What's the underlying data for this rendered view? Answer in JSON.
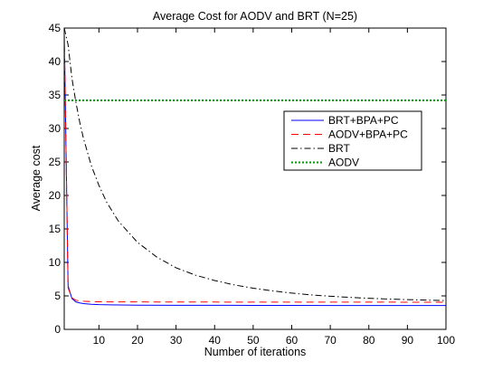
{
  "chart_data": {
    "type": "line",
    "title": "Average Cost for AODV and BRT (N=25)",
    "xlabel": "Number of iterations",
    "ylabel": "Average cost",
    "xlim": [
      1,
      100
    ],
    "ylim": [
      0,
      45
    ],
    "x_ticks": [
      10,
      20,
      30,
      40,
      50,
      60,
      70,
      80,
      90,
      100
    ],
    "y_ticks": [
      0,
      5,
      10,
      15,
      20,
      25,
      30,
      35,
      40,
      45
    ],
    "grid": false,
    "legend_position": "upper-right",
    "series": [
      {
        "name": "BRT+BPA+PC",
        "color": "#0000ff",
        "line_style": "solid",
        "x": [
          1,
          2,
          3,
          4,
          5,
          6,
          8,
          10,
          15,
          20,
          30,
          40,
          50,
          60,
          70,
          80,
          90,
          100
        ],
        "y": [
          45,
          6.5,
          4.6,
          4.1,
          3.95,
          3.85,
          3.75,
          3.7,
          3.65,
          3.62,
          3.6,
          3.6,
          3.58,
          3.58,
          3.57,
          3.57,
          3.57,
          3.56
        ]
      },
      {
        "name": "AODV+BPA+PC",
        "color": "#ff0000",
        "line_style": "dashed",
        "x": [
          1,
          2,
          3,
          4,
          5,
          6,
          8,
          10,
          15,
          20,
          30,
          40,
          50,
          60,
          70,
          80,
          90,
          100
        ],
        "y": [
          45,
          6.2,
          4.7,
          4.35,
          4.25,
          4.2,
          4.15,
          4.12,
          4.1,
          4.1,
          4.08,
          4.08,
          4.07,
          4.07,
          4.07,
          4.07,
          4.06,
          4.06
        ]
      },
      {
        "name": "BRT",
        "color": "#000000",
        "line_style": "dashdot",
        "x": [
          1,
          2,
          3,
          4,
          5,
          6,
          8,
          10,
          12,
          15,
          20,
          25,
          30,
          35,
          40,
          45,
          50,
          55,
          60,
          65,
          70,
          75,
          80,
          85,
          90,
          95,
          100
        ],
        "y": [
          45,
          42.5,
          37.5,
          34.0,
          31.0,
          28.5,
          24.5,
          21.5,
          19.0,
          16.2,
          13.0,
          10.8,
          9.2,
          8.1,
          7.3,
          6.65,
          6.15,
          5.75,
          5.42,
          5.15,
          4.95,
          4.78,
          4.64,
          4.53,
          4.44,
          4.37,
          4.3
        ]
      },
      {
        "name": "AODV",
        "color": "#009900",
        "line_style": "dotted",
        "x": [
          1,
          100
        ],
        "y": [
          34.2,
          34.2
        ]
      }
    ]
  }
}
